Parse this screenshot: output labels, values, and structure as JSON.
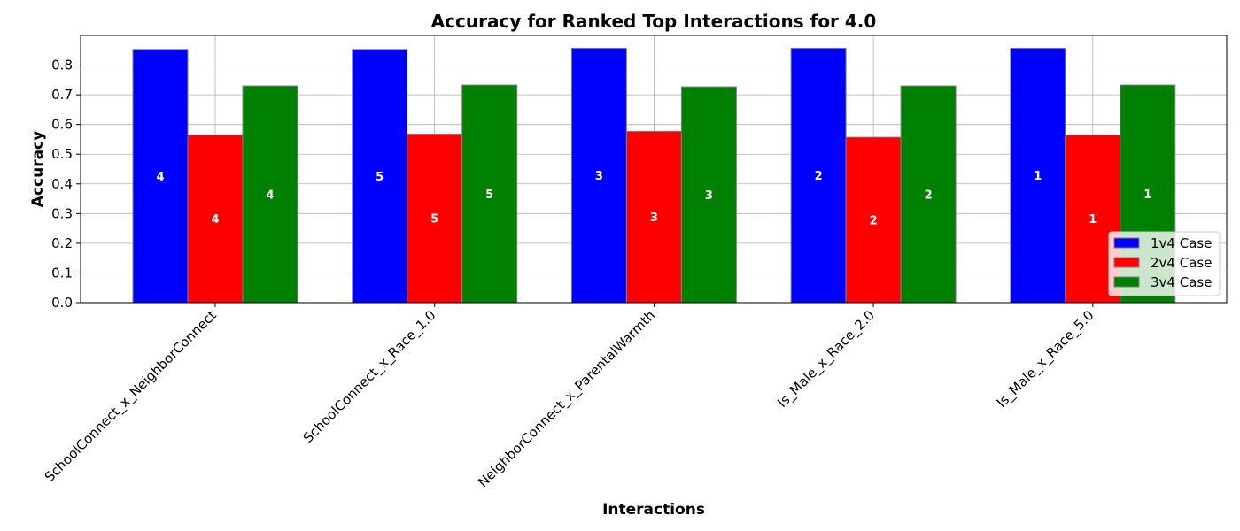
{
  "chart_data": {
    "type": "bar",
    "title": "Accuracy for Ranked Top Interactions for 4.0",
    "xlabel": "Interactions",
    "ylabel": "Accuracy",
    "ylim": [
      0,
      0.9
    ],
    "yticks": [
      "0.0",
      "0.1",
      "0.2",
      "0.3",
      "0.4",
      "0.5",
      "0.6",
      "0.7",
      "0.8"
    ],
    "grid": true,
    "legend_position": "lower-right",
    "categories": [
      "SchoolConnect_x_NeighborConnect",
      "SchoolConnect_x_Race_1.0",
      "NeighborConnect_x_ParentalWarmth",
      "Is_Male_x_Race_2.0",
      "Is_Male_x_Race_5.0"
    ],
    "series": [
      {
        "name": "1v4 Case",
        "color": "#0000ff",
        "values": [
          0.853,
          0.853,
          0.857,
          0.857,
          0.857
        ],
        "labels": [
          "4",
          "5",
          "3",
          "2",
          "1"
        ]
      },
      {
        "name": "2v4 Case",
        "color": "#ff0000",
        "values": [
          0.565,
          0.568,
          0.577,
          0.557,
          0.565
        ],
        "labels": [
          "4",
          "5",
          "3",
          "2",
          "1"
        ]
      },
      {
        "name": "3v4 Case",
        "color": "#008000",
        "values": [
          0.73,
          0.733,
          0.727,
          0.73,
          0.733
        ],
        "labels": [
          "4",
          "5",
          "3",
          "2",
          "1"
        ]
      }
    ]
  }
}
